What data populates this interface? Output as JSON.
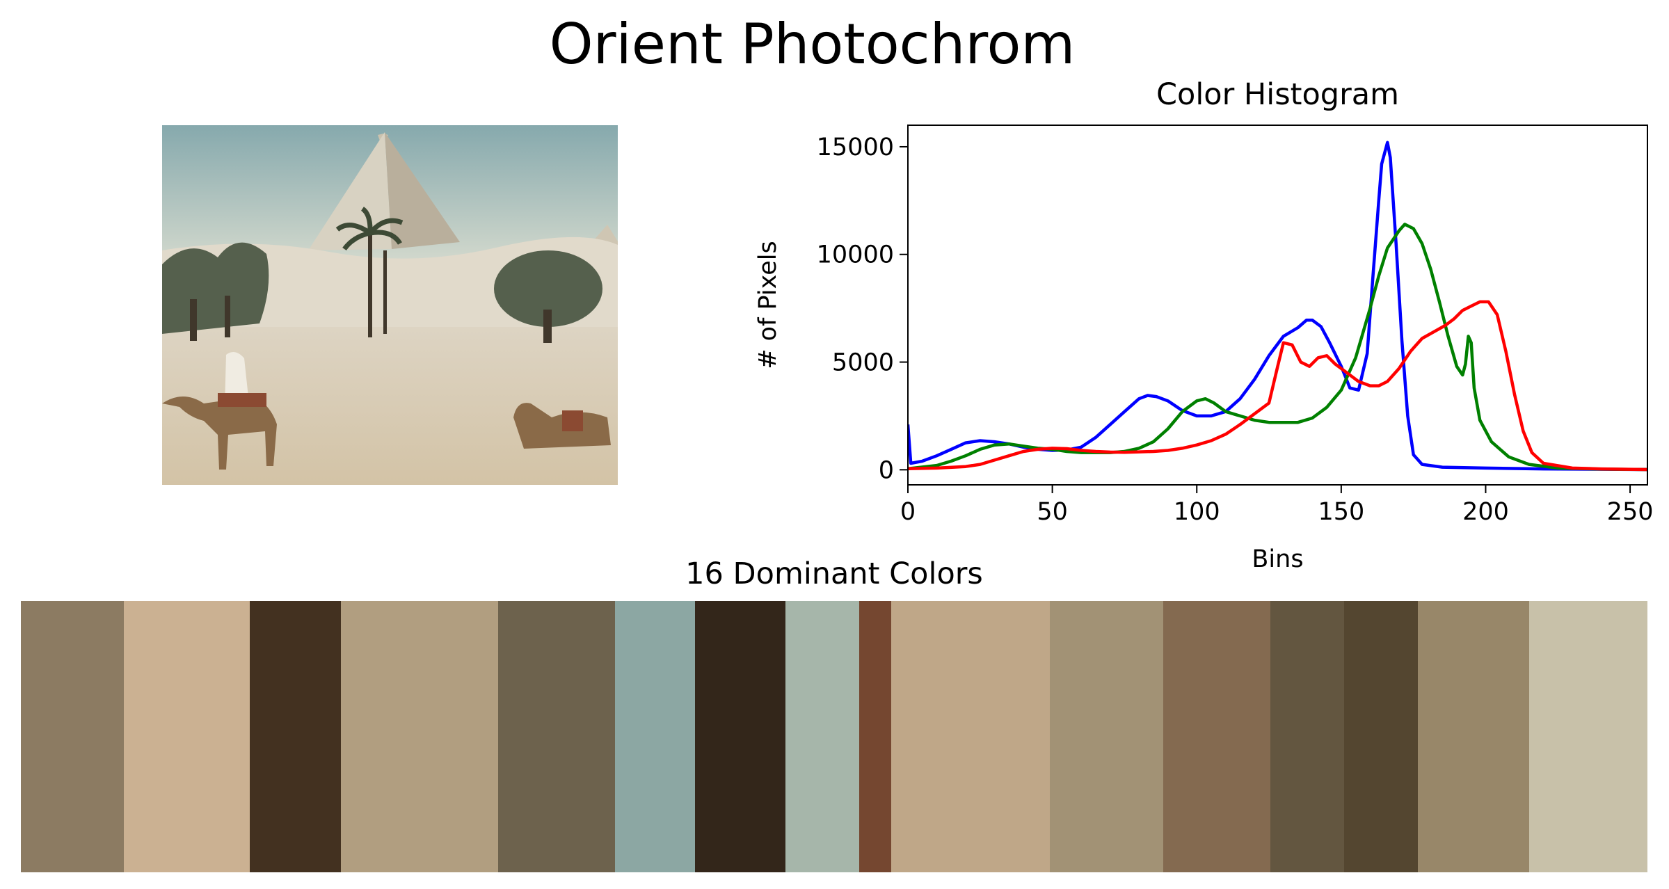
{
  "figure": {
    "title": "Orient Photochrom"
  },
  "photo": {
    "sky_top": "#86a9ad",
    "sky_bottom": "#e3e3d4",
    "sand": "#d6c9b1",
    "pyramid_light": "#d8d2c2",
    "pyramid_shadow": "#b9af9c",
    "tree": "#55604d",
    "trunk": "#40372b",
    "camel": "#8a6a48",
    "rider": "#f0ece2",
    "saddle": "#8b4a32"
  },
  "chart_data": {
    "type": "line",
    "title": "Color Histogram",
    "xlabel": "Bins",
    "ylabel": "# of Pixels",
    "xlim": [
      0,
      256
    ],
    "ylim": [
      -700,
      16000
    ],
    "xticks": [
      0,
      50,
      100,
      150,
      200,
      250
    ],
    "yticks": [
      0,
      5000,
      10000,
      15000
    ],
    "grid": false,
    "series": [
      {
        "color": "#0000ff",
        "points": [
          [
            0,
            2100
          ],
          [
            1,
            300
          ],
          [
            5,
            400
          ],
          [
            10,
            650
          ],
          [
            15,
            950
          ],
          [
            20,
            1250
          ],
          [
            25,
            1350
          ],
          [
            30,
            1300
          ],
          [
            35,
            1200
          ],
          [
            40,
            1050
          ],
          [
            45,
            950
          ],
          [
            50,
            900
          ],
          [
            55,
            920
          ],
          [
            60,
            1050
          ],
          [
            65,
            1500
          ],
          [
            70,
            2100
          ],
          [
            75,
            2700
          ],
          [
            80,
            3300
          ],
          [
            83,
            3450
          ],
          [
            86,
            3400
          ],
          [
            90,
            3200
          ],
          [
            95,
            2750
          ],
          [
            100,
            2500
          ],
          [
            105,
            2500
          ],
          [
            110,
            2700
          ],
          [
            115,
            3300
          ],
          [
            120,
            4200
          ],
          [
            125,
            5300
          ],
          [
            130,
            6200
          ],
          [
            135,
            6600
          ],
          [
            138,
            6950
          ],
          [
            140,
            6950
          ],
          [
            143,
            6650
          ],
          [
            146,
            5900
          ],
          [
            150,
            4800
          ],
          [
            153,
            3800
          ],
          [
            156,
            3700
          ],
          [
            159,
            5400
          ],
          [
            161,
            9000
          ],
          [
            163,
            12500
          ],
          [
            164,
            14200
          ],
          [
            166,
            15200
          ],
          [
            167,
            14500
          ],
          [
            169,
            10500
          ],
          [
            171,
            6000
          ],
          [
            173,
            2500
          ],
          [
            175,
            700
          ],
          [
            178,
            250
          ],
          [
            185,
            120
          ],
          [
            200,
            80
          ],
          [
            220,
            40
          ],
          [
            256,
            10
          ]
        ]
      },
      {
        "color": "#008000",
        "points": [
          [
            0,
            50
          ],
          [
            10,
            200
          ],
          [
            15,
            400
          ],
          [
            20,
            650
          ],
          [
            25,
            950
          ],
          [
            30,
            1150
          ],
          [
            35,
            1200
          ],
          [
            40,
            1100
          ],
          [
            45,
            1000
          ],
          [
            50,
            950
          ],
          [
            55,
            850
          ],
          [
            60,
            800
          ],
          [
            65,
            800
          ],
          [
            70,
            800
          ],
          [
            75,
            850
          ],
          [
            80,
            1000
          ],
          [
            85,
            1300
          ],
          [
            90,
            1900
          ],
          [
            95,
            2700
          ],
          [
            100,
            3200
          ],
          [
            103,
            3300
          ],
          [
            106,
            3100
          ],
          [
            110,
            2700
          ],
          [
            115,
            2500
          ],
          [
            120,
            2300
          ],
          [
            125,
            2200
          ],
          [
            130,
            2200
          ],
          [
            135,
            2200
          ],
          [
            140,
            2400
          ],
          [
            145,
            2900
          ],
          [
            150,
            3700
          ],
          [
            155,
            5200
          ],
          [
            160,
            7500
          ],
          [
            163,
            9000
          ],
          [
            166,
            10300
          ],
          [
            170,
            11100
          ],
          [
            172,
            11400
          ],
          [
            175,
            11200
          ],
          [
            178,
            10500
          ],
          [
            181,
            9300
          ],
          [
            184,
            7800
          ],
          [
            187,
            6200
          ],
          [
            190,
            4800
          ],
          [
            192,
            4400
          ],
          [
            193,
            4900
          ],
          [
            194,
            6200
          ],
          [
            195,
            5900
          ],
          [
            196,
            3800
          ],
          [
            198,
            2300
          ],
          [
            202,
            1300
          ],
          [
            208,
            600
          ],
          [
            215,
            250
          ],
          [
            225,
            80
          ],
          [
            240,
            30
          ],
          [
            256,
            10
          ]
        ]
      },
      {
        "color": "#ff0000",
        "points": [
          [
            0,
            50
          ],
          [
            10,
            80
          ],
          [
            20,
            150
          ],
          [
            25,
            250
          ],
          [
            30,
            450
          ],
          [
            35,
            650
          ],
          [
            40,
            850
          ],
          [
            45,
            950
          ],
          [
            50,
            1000
          ],
          [
            55,
            980
          ],
          [
            60,
            900
          ],
          [
            65,
            850
          ],
          [
            70,
            820
          ],
          [
            75,
            810
          ],
          [
            80,
            830
          ],
          [
            85,
            850
          ],
          [
            90,
            900
          ],
          [
            95,
            1000
          ],
          [
            100,
            1150
          ],
          [
            105,
            1350
          ],
          [
            110,
            1650
          ],
          [
            115,
            2100
          ],
          [
            120,
            2600
          ],
          [
            125,
            3100
          ],
          [
            128,
            4800
          ],
          [
            130,
            5900
          ],
          [
            133,
            5800
          ],
          [
            136,
            5000
          ],
          [
            139,
            4800
          ],
          [
            142,
            5200
          ],
          [
            145,
            5300
          ],
          [
            148,
            4900
          ],
          [
            152,
            4500
          ],
          [
            156,
            4100
          ],
          [
            160,
            3900
          ],
          [
            163,
            3900
          ],
          [
            166,
            4100
          ],
          [
            170,
            4700
          ],
          [
            174,
            5500
          ],
          [
            178,
            6100
          ],
          [
            182,
            6400
          ],
          [
            186,
            6700
          ],
          [
            189,
            7000
          ],
          [
            192,
            7400
          ],
          [
            195,
            7600
          ],
          [
            198,
            7800
          ],
          [
            201,
            7800
          ],
          [
            204,
            7200
          ],
          [
            207,
            5500
          ],
          [
            210,
            3500
          ],
          [
            213,
            1800
          ],
          [
            216,
            800
          ],
          [
            220,
            300
          ],
          [
            230,
            80
          ],
          [
            240,
            40
          ],
          [
            256,
            10
          ]
        ]
      }
    ]
  },
  "palette": {
    "title": "16 Dominant Colors",
    "colors": [
      {
        "hex": "#8c7b62",
        "share": 0.0631
      },
      {
        "hex": "#cbb192",
        "share": 0.0778
      },
      {
        "hex": "#433120",
        "share": 0.0557
      },
      {
        "hex": "#b19e80",
        "share": 0.0969
      },
      {
        "hex": "#6d624d",
        "share": 0.0718
      },
      {
        "hex": "#8ca7a3",
        "share": 0.049
      },
      {
        "hex": "#33261a",
        "share": 0.0557
      },
      {
        "hex": "#a6b6aa",
        "share": 0.0455
      },
      {
        "hex": "#754730",
        "share": 0.0196
      },
      {
        "hex": "#bfa788",
        "share": 0.0977
      },
      {
        "hex": "#a29275",
        "share": 0.0694
      },
      {
        "hex": "#846a50",
        "share": 0.0659
      },
      {
        "hex": "#635640",
        "share": 0.0455
      },
      {
        "hex": "#544630",
        "share": 0.0455
      },
      {
        "hex": "#988769",
        "share": 0.0683
      },
      {
        "hex": "#c8c1a9",
        "share": 0.0726
      }
    ]
  }
}
